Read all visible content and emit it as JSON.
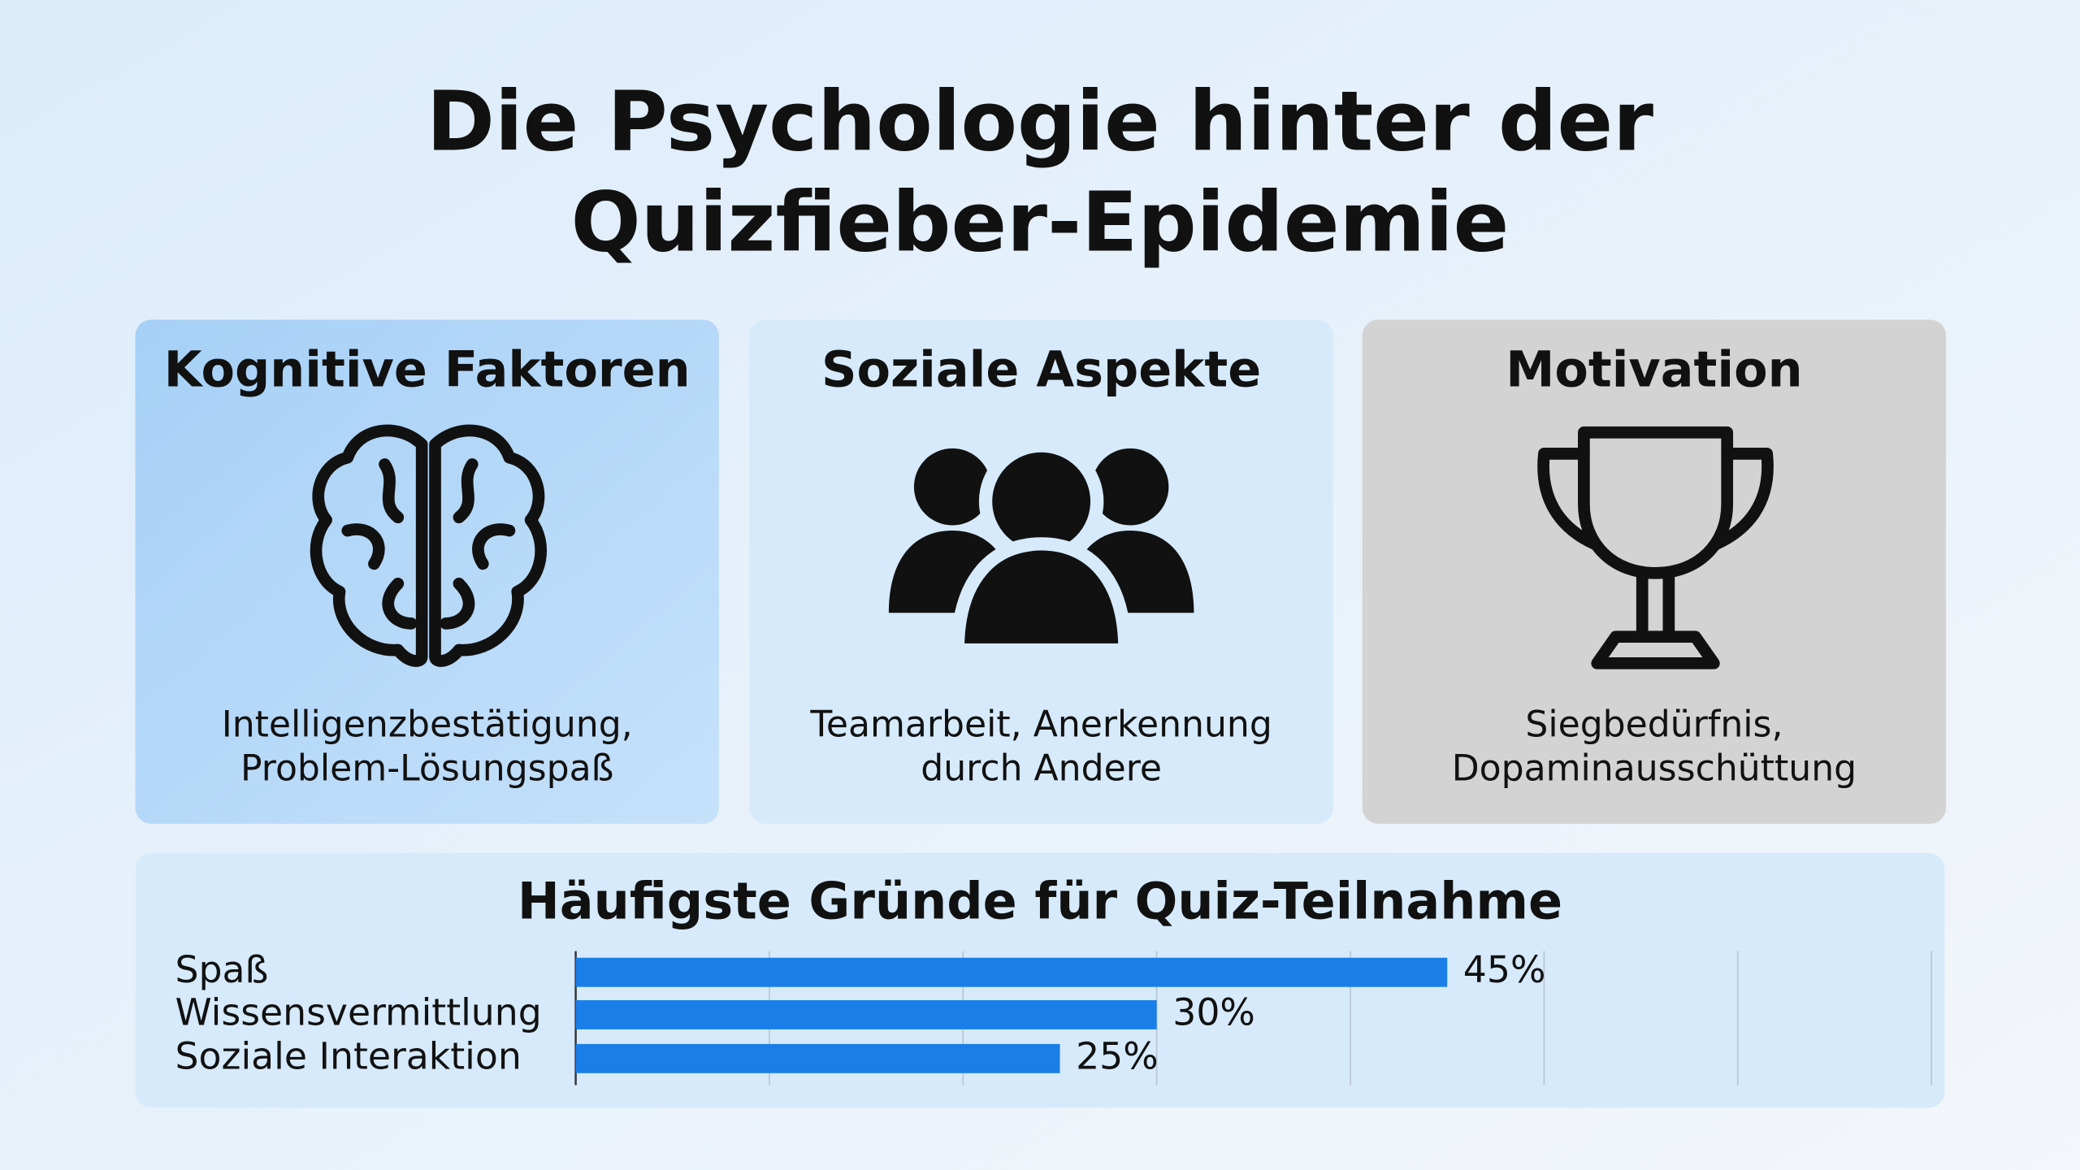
{
  "title": "Die Psychologie hinter der Quizfieber-Epidemie",
  "title_lines": [
    "Die Psychologie hinter der",
    "Quizfieber-Epidemie"
  ],
  "cards": [
    {
      "title": "Kognitive Faktoren",
      "text": [
        "Intelligenzbestätigung,",
        "Problem-Lösungspaß"
      ]
    },
    {
      "title": "Soziale Aspekte",
      "text": [
        "Teamarbeit, Anerkennung",
        "durch Andere"
      ]
    },
    {
      "title": "Motivation",
      "text": [
        "Siegbedürfnis,",
        "Dopaminausschüttung"
      ]
    }
  ],
  "chart_data": {
    "type": "hbar",
    "title": "Häufigste Gründe für Quiz-Teilnahme",
    "categories": [
      "Spaß",
      "Wissensvermittlung",
      "Soziale Interaktion"
    ],
    "values": [
      45,
      30,
      25
    ],
    "value_labels": [
      "45%",
      "30%",
      "25%"
    ],
    "color": "#1a7ee8",
    "xlim": [
      0,
      70
    ],
    "xticks": [
      0,
      10,
      20,
      30,
      40,
      50,
      60,
      70
    ],
    "grid": true
  }
}
